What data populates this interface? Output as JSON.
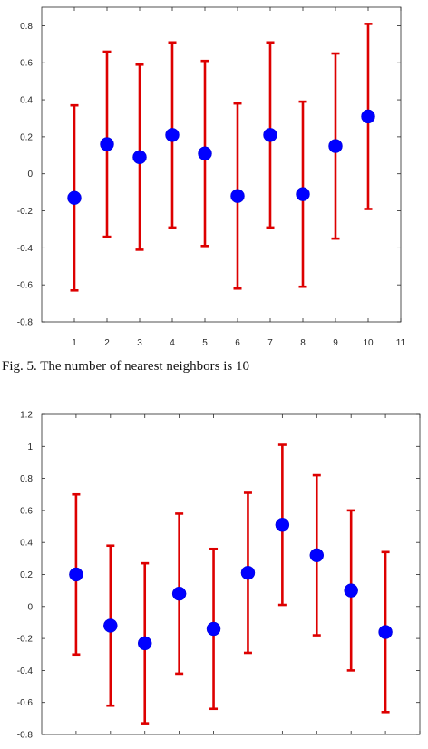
{
  "chart_data": [
    {
      "type": "scatter",
      "error_bars": true,
      "x": [
        1,
        2,
        3,
        4,
        5,
        6,
        7,
        8,
        9,
        10
      ],
      "y": [
        -0.13,
        0.16,
        0.09,
        0.21,
        0.11,
        -0.12,
        0.21,
        -0.11,
        0.15,
        0.31
      ],
      "y_lower": [
        -0.63,
        -0.34,
        -0.41,
        -0.29,
        -0.39,
        -0.62,
        -0.29,
        -0.61,
        -0.35,
        -0.19
      ],
      "y_upper": [
        0.37,
        0.66,
        0.59,
        0.71,
        0.61,
        0.38,
        0.71,
        0.39,
        0.65,
        0.81
      ],
      "xlim": [
        0,
        11
      ],
      "ylim": [
        -0.8,
        0.9
      ],
      "x_ticks": [
        1,
        2,
        3,
        4,
        5,
        6,
        7,
        8,
        9,
        10,
        11
      ],
      "x_tick_labels": [
        "1",
        "2",
        "3",
        "4",
        "5",
        "6",
        "7",
        "8",
        "9",
        "10",
        "11"
      ],
      "y_ticks": [
        -0.8,
        -0.6,
        -0.4,
        -0.2,
        0,
        0.2,
        0.4,
        0.6,
        0.8
      ],
      "y_tick_labels": [
        "-0.8",
        "-0.6",
        "-0.4",
        "-0.2",
        "0",
        "0.2",
        "0.4",
        "0.6",
        "0.8"
      ],
      "marker_color": "#0000ff",
      "error_color": "#dd0000",
      "grid": false,
      "caption": "Fig. 5. The number of nearest neighbors is 10"
    },
    {
      "type": "scatter",
      "error_bars": true,
      "x": [
        1,
        2,
        3,
        4,
        5,
        6,
        7,
        8,
        9,
        10
      ],
      "y": [
        0.2,
        -0.12,
        -0.23,
        0.08,
        -0.14,
        0.21,
        0.51,
        0.32,
        0.1,
        -0.16
      ],
      "y_lower": [
        -0.3,
        -0.62,
        -0.73,
        -0.42,
        -0.64,
        -0.29,
        0.01,
        -0.18,
        -0.4,
        -0.66
      ],
      "y_upper": [
        0.7,
        0.38,
        0.27,
        0.58,
        0.36,
        0.71,
        1.01,
        0.82,
        0.6,
        0.34
      ],
      "xlim": [
        0,
        11
      ],
      "ylim": [
        -0.8,
        1.2
      ],
      "y_ticks": [
        -0.8,
        -0.6,
        -0.4,
        -0.2,
        0,
        0.2,
        0.4,
        0.6,
        0.8,
        1,
        1.2
      ],
      "y_tick_labels": [
        "-0.8",
        "-0.6",
        "-0.4",
        "-0.2",
        "0",
        "0.2",
        "0.4",
        "0.6",
        "0.8",
        "1",
        "1.2"
      ],
      "marker_color": "#0000ff",
      "error_color": "#dd0000",
      "grid": false
    }
  ]
}
